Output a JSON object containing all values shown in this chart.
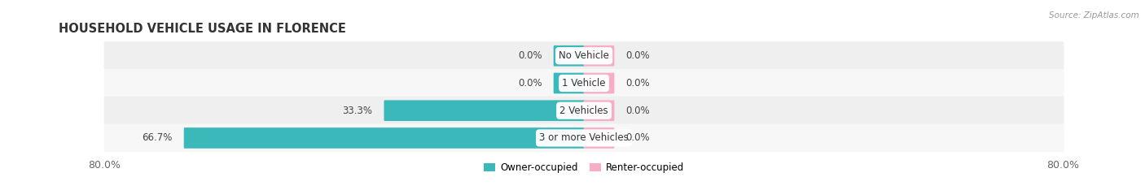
{
  "title": "HOUSEHOLD VEHICLE USAGE IN FLORENCE",
  "source": "Source: ZipAtlas.com",
  "categories": [
    "No Vehicle",
    "1 Vehicle",
    "2 Vehicles",
    "3 or more Vehicles"
  ],
  "owner_values": [
    0.0,
    0.0,
    33.3,
    66.7
  ],
  "renter_values": [
    0.0,
    0.0,
    0.0,
    0.0
  ],
  "owner_color": "#3ab8ba",
  "renter_color": "#f7aec4",
  "row_bg_even": "#efefef",
  "row_bg_odd": "#f7f7f7",
  "owner_label": "Owner-occupied",
  "renter_label": "Renter-occupied",
  "x_min": -80.0,
  "x_max": 80.0,
  "min_stub": 5.0,
  "title_fontsize": 10.5,
  "label_fontsize": 8.5,
  "tick_fontsize": 9,
  "value_fontsize": 8.5
}
